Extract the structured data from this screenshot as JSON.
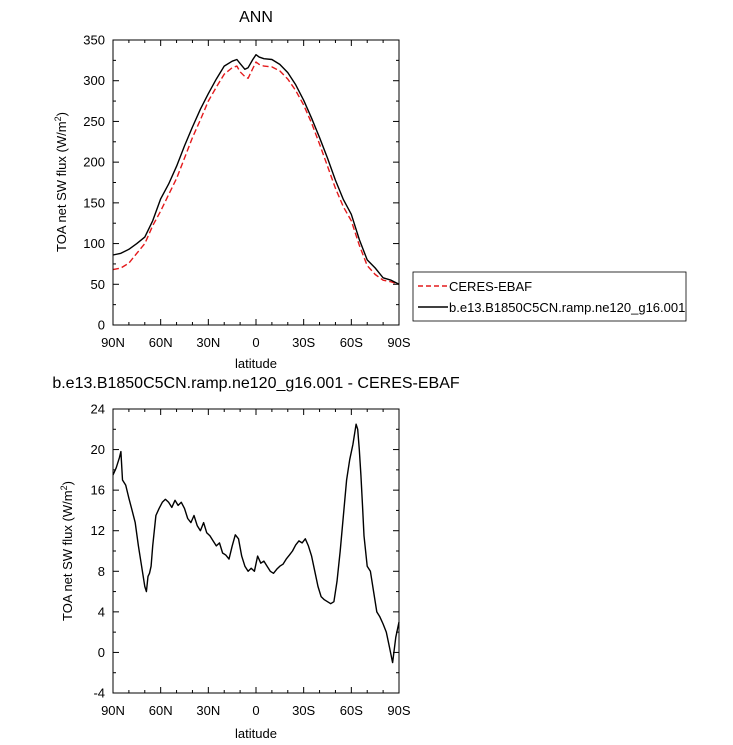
{
  "chart_data": [
    {
      "type": "line",
      "title": "ANN",
      "xlabel": "latitude",
      "ylabel": "TOA net SW flux (W/m",
      "ylabel_sup": "2",
      "ylabel_end": ")",
      "xlim": [
        90,
        -90
      ],
      "ylim": [
        0,
        350
      ],
      "x_ticks": [
        {
          "value": 90,
          "label": "90N"
        },
        {
          "value": 60,
          "label": "60N"
        },
        {
          "value": 30,
          "label": "30N"
        },
        {
          "value": 0,
          "label": "0"
        },
        {
          "value": -30,
          "label": "30S"
        },
        {
          "value": -60,
          "label": "60S"
        },
        {
          "value": -90,
          "label": "90S"
        }
      ],
      "y_ticks": [
        0,
        50,
        100,
        150,
        200,
        250,
        300,
        350
      ],
      "legend_position": "right",
      "series": [
        {
          "name": "CERES-EBAF",
          "color": "#e41a1c",
          "dash": "dashed",
          "x": [
            90,
            85,
            80,
            75,
            70,
            65,
            60,
            55,
            50,
            45,
            40,
            35,
            30,
            25,
            20,
            15,
            12,
            10,
            7,
            5,
            2,
            0,
            -2,
            -5,
            -10,
            -15,
            -20,
            -25,
            -30,
            -35,
            -40,
            -45,
            -50,
            -55,
            -60,
            -65,
            -70,
            -75,
            -80,
            -85,
            -90
          ],
          "y": [
            68,
            70,
            76,
            88,
            100,
            122,
            140,
            160,
            180,
            205,
            230,
            252,
            275,
            292,
            308,
            316,
            318,
            311,
            305,
            303,
            315,
            323,
            320,
            318,
            317,
            312,
            302,
            288,
            270,
            248,
            222,
            195,
            168,
            145,
            128,
            98,
            73,
            62,
            55,
            53,
            50
          ]
        },
        {
          "name": "b.e13.B1850C5CN.ramp.ne120_g16.001",
          "color": "#000000",
          "dash": "solid",
          "x": [
            90,
            85,
            80,
            75,
            70,
            65,
            60,
            55,
            50,
            45,
            40,
            35,
            30,
            25,
            20,
            15,
            12,
            10,
            7,
            5,
            2,
            0,
            -2,
            -5,
            -10,
            -15,
            -20,
            -25,
            -30,
            -35,
            -40,
            -45,
            -50,
            -55,
            -60,
            -65,
            -70,
            -75,
            -80,
            -85,
            -90
          ],
          "y": [
            86,
            88,
            93,
            100,
            108,
            128,
            155,
            173,
            195,
            220,
            243,
            265,
            284,
            302,
            318,
            324,
            326,
            321,
            314,
            316,
            326,
            332,
            329,
            327,
            326,
            320,
            310,
            295,
            276,
            254,
            230,
            205,
            178,
            154,
            136,
            105,
            80,
            70,
            58,
            55,
            50
          ]
        }
      ]
    },
    {
      "type": "line",
      "title": "b.e13.B1850C5CN.ramp.ne120_g16.001 - CERES-EBAF",
      "xlabel": "latitude",
      "ylabel": "TOA net SW flux (W/m",
      "ylabel_sup": "2",
      "ylabel_end": ")",
      "xlim": [
        90,
        -90
      ],
      "ylim": [
        -4,
        24
      ],
      "x_ticks": [
        {
          "value": 90,
          "label": "90N"
        },
        {
          "value": 60,
          "label": "60N"
        },
        {
          "value": 30,
          "label": "30N"
        },
        {
          "value": 0,
          "label": "0"
        },
        {
          "value": -30,
          "label": "30S"
        },
        {
          "value": -60,
          "label": "60S"
        },
        {
          "value": -90,
          "label": "90S"
        }
      ],
      "y_ticks": [
        -4,
        0,
        4,
        8,
        12,
        16,
        20,
        24
      ],
      "series": [
        {
          "color": "#000000",
          "x": [
            90,
            88,
            86,
            85,
            84,
            82,
            80,
            78,
            76,
            74,
            72,
            70,
            69,
            68,
            67,
            66,
            65,
            63,
            61,
            59,
            57,
            55,
            53,
            51,
            49,
            47,
            45,
            43,
            41,
            39,
            37,
            35,
            33,
            31,
            29,
            27,
            25,
            23,
            21,
            19,
            17,
            15,
            13,
            11,
            9,
            7,
            5,
            3,
            1,
            -1,
            -3,
            -5,
            -7,
            -9,
            -11,
            -13,
            -15,
            -17,
            -19,
            -21,
            -23,
            -25,
            -27,
            -29,
            -31,
            -33,
            -35,
            -37,
            -39,
            -41,
            -43,
            -45,
            -47,
            -49,
            -51,
            -53,
            -55,
            -57,
            -59,
            -61,
            -63,
            -64,
            -65,
            -66,
            -67,
            -68,
            -70,
            -72,
            -74,
            -76,
            -78,
            -80,
            -82,
            -84,
            -86,
            -88,
            -90
          ],
          "y": [
            17.5,
            18.2,
            19.2,
            19.8,
            17.0,
            16.5,
            15.2,
            14.0,
            12.8,
            10.5,
            8.5,
            6.5,
            6.0,
            7.5,
            7.8,
            8.5,
            10.5,
            13.5,
            14.2,
            14.8,
            15.1,
            14.8,
            14.3,
            15.0,
            14.5,
            14.8,
            14.2,
            13.2,
            12.8,
            13.5,
            12.5,
            12.0,
            12.8,
            11.8,
            11.5,
            11.0,
            10.5,
            10.8,
            9.8,
            9.6,
            9.2,
            10.5,
            11.6,
            11.2,
            9.5,
            8.5,
            8.0,
            8.3,
            8.0,
            9.5,
            8.8,
            9.0,
            8.5,
            8.0,
            7.8,
            8.2,
            8.5,
            8.7,
            9.2,
            9.6,
            10.0,
            10.6,
            11.0,
            10.8,
            11.2,
            10.5,
            9.5,
            8.0,
            6.5,
            5.5,
            5.2,
            5.0,
            4.8,
            5.0,
            7.0,
            10.0,
            13.5,
            17.0,
            19.0,
            20.5,
            22.5,
            22.0,
            20.0,
            17.5,
            14.5,
            11.5,
            8.5,
            8.0,
            6.0,
            4.0,
            3.5,
            2.8,
            2.0,
            0.5,
            -1.0,
            1.5,
            3.0
          ]
        }
      ]
    }
  ]
}
